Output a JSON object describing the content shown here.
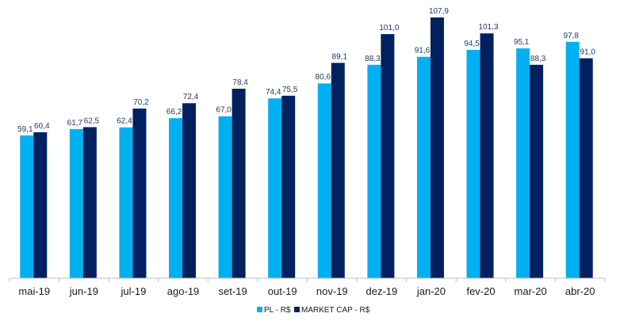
{
  "chart_data": {
    "type": "bar",
    "title": "",
    "xlabel": "",
    "ylabel": "",
    "categories": [
      "mai-19",
      "jun-19",
      "jul-19",
      "ago-19",
      "set-19",
      "out-19",
      "nov-19",
      "dez-19",
      "jan-20",
      "fev-20",
      "mar-20",
      "abr-20"
    ],
    "series": [
      {
        "name": "PL - R$",
        "color": "#00b0f0",
        "values": [
          59.1,
          61.7,
          62.4,
          66.2,
          67.0,
          74.4,
          80.6,
          88.3,
          91.6,
          94.5,
          95.1,
          97.8
        ],
        "labels": [
          "59,1",
          "61,7",
          "62,4",
          "66,2",
          "67,0",
          "74,4",
          "80,6",
          "88,3",
          "91,6",
          "94,5",
          "95,1",
          "97,8"
        ]
      },
      {
        "name": "MARKET CAP - R$",
        "color": "#002060",
        "values": [
          60.4,
          62.5,
          70.2,
          72.4,
          78.4,
          75.5,
          89.1,
          101.0,
          107.9,
          101.3,
          88.3,
          91.0
        ],
        "labels": [
          "60,4",
          "62,5",
          "70,2",
          "72,4",
          "78,4",
          "75,5",
          "89,1",
          "101,0",
          "107,9",
          "101,3",
          "88,3",
          "91,0"
        ]
      }
    ],
    "ylim": [
      0,
      107.9
    ],
    "grid": false,
    "legend_position": "bottom-center"
  }
}
